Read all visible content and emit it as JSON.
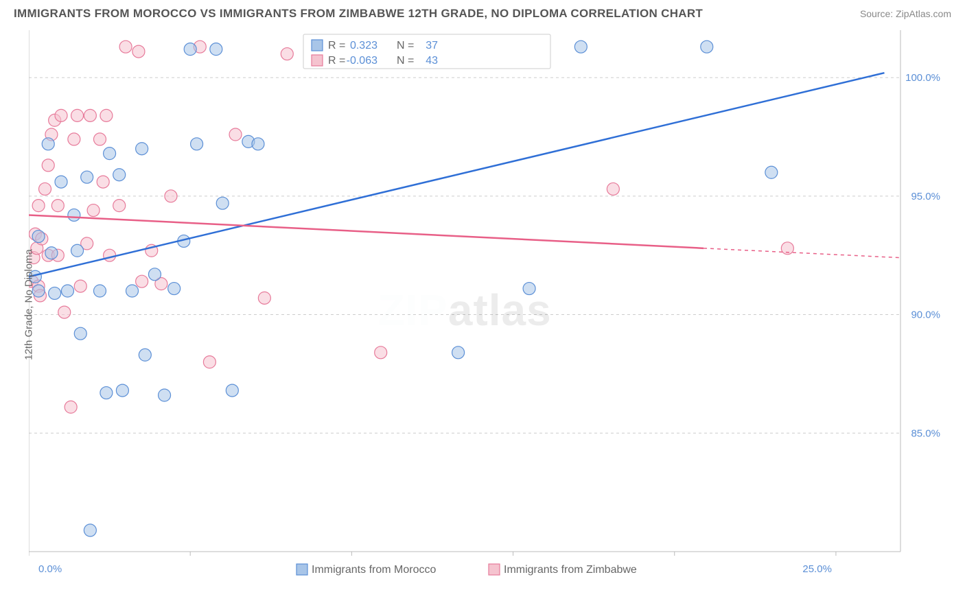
{
  "header": {
    "title": "IMMIGRANTS FROM MOROCCO VS IMMIGRANTS FROM ZIMBABWE 12TH GRADE, NO DIPLOMA CORRELATION CHART",
    "source": "Source: ZipAtlas.com"
  },
  "chart": {
    "type": "scatter",
    "ylabel": "12th Grade, No Diploma",
    "xlim": [
      0,
      27
    ],
    "ylim": [
      80,
      102
    ],
    "yticks": [
      85.0,
      90.0,
      95.0,
      100.0
    ],
    "ytick_labels": [
      "85.0%",
      "90.0%",
      "95.0%",
      "100.0%"
    ],
    "xticks": [
      0,
      25
    ],
    "xtick_labels": [
      "0.0%",
      "25.0%"
    ],
    "xtick_minor": [
      5,
      10,
      15,
      20
    ],
    "background_color": "#ffffff",
    "grid_color": "#cccccc",
    "marker_radius": 9,
    "series": {
      "blue": {
        "label": "Immigrants from Morocco",
        "point_fill": "#a8c5e8",
        "point_stroke": "#5b8fd6",
        "trend_color": "#2f6fd6",
        "R": "0.323",
        "N": "37",
        "points": [
          [
            0.2,
            91.6
          ],
          [
            0.3,
            93.3
          ],
          [
            0.3,
            91.0
          ],
          [
            0.6,
            97.2
          ],
          [
            0.7,
            92.6
          ],
          [
            0.8,
            90.9
          ],
          [
            1.0,
            95.6
          ],
          [
            1.2,
            91.0
          ],
          [
            1.4,
            94.2
          ],
          [
            1.5,
            92.7
          ],
          [
            1.6,
            89.2
          ],
          [
            1.8,
            95.8
          ],
          [
            1.9,
            80.9
          ],
          [
            2.2,
            91.0
          ],
          [
            2.4,
            86.7
          ],
          [
            2.5,
            96.8
          ],
          [
            2.8,
            95.9
          ],
          [
            2.9,
            86.8
          ],
          [
            3.2,
            91.0
          ],
          [
            3.5,
            97.0
          ],
          [
            3.6,
            88.3
          ],
          [
            3.9,
            91.7
          ],
          [
            4.2,
            86.6
          ],
          [
            4.5,
            91.1
          ],
          [
            4.8,
            93.1
          ],
          [
            5.0,
            101.2
          ],
          [
            5.2,
            97.2
          ],
          [
            5.8,
            101.2
          ],
          [
            6.0,
            94.7
          ],
          [
            6.3,
            86.8
          ],
          [
            6.8,
            97.3
          ],
          [
            7.1,
            97.2
          ],
          [
            13.3,
            88.4
          ],
          [
            15.5,
            91.1
          ],
          [
            17.1,
            101.3
          ],
          [
            21.0,
            101.3
          ],
          [
            23.0,
            96.0
          ]
        ],
        "trend": {
          "x1": 0.0,
          "y1": 91.6,
          "x2": 26.5,
          "y2": 100.2
        }
      },
      "pink": {
        "label": "Immigrants from Zimbabwe",
        "point_fill": "#f5c3cf",
        "point_stroke": "#e77a9a",
        "trend_color": "#e85f87",
        "R": "-0.063",
        "N": "43",
        "points": [
          [
            0.1,
            91.4
          ],
          [
            0.15,
            92.4
          ],
          [
            0.2,
            93.4
          ],
          [
            0.25,
            92.8
          ],
          [
            0.3,
            94.6
          ],
          [
            0.3,
            91.2
          ],
          [
            0.35,
            90.8
          ],
          [
            0.4,
            93.2
          ],
          [
            0.5,
            95.3
          ],
          [
            0.6,
            96.3
          ],
          [
            0.6,
            92.5
          ],
          [
            0.7,
            97.6
          ],
          [
            0.8,
            98.2
          ],
          [
            0.9,
            94.6
          ],
          [
            0.9,
            92.5
          ],
          [
            1.0,
            98.4
          ],
          [
            1.1,
            90.1
          ],
          [
            1.3,
            86.1
          ],
          [
            1.4,
            97.4
          ],
          [
            1.5,
            98.4
          ],
          [
            1.6,
            91.2
          ],
          [
            1.8,
            93.0
          ],
          [
            1.9,
            98.4
          ],
          [
            2.0,
            94.4
          ],
          [
            2.2,
            97.4
          ],
          [
            2.3,
            95.6
          ],
          [
            2.4,
            98.4
          ],
          [
            2.5,
            92.5
          ],
          [
            2.8,
            94.6
          ],
          [
            3.0,
            101.3
          ],
          [
            3.4,
            101.1
          ],
          [
            3.5,
            91.4
          ],
          [
            3.8,
            92.7
          ],
          [
            4.1,
            91.3
          ],
          [
            4.4,
            95.0
          ],
          [
            5.3,
            101.3
          ],
          [
            5.6,
            88.0
          ],
          [
            6.4,
            97.6
          ],
          [
            7.3,
            90.7
          ],
          [
            8.0,
            101.0
          ],
          [
            10.9,
            88.4
          ],
          [
            18.1,
            95.3
          ],
          [
            23.5,
            92.8
          ]
        ],
        "trend_solid": {
          "x1": 0.0,
          "y1": 94.2,
          "x2": 20.9,
          "y2": 92.8
        },
        "trend_dashed": {
          "x1": 20.9,
          "y1": 92.8,
          "x2": 27.0,
          "y2": 92.4
        }
      }
    },
    "legend_top": {
      "R_label": "R =",
      "N_label": "N ="
    },
    "watermark": {
      "zip": "ZIP",
      "atlas": "atlas"
    }
  }
}
